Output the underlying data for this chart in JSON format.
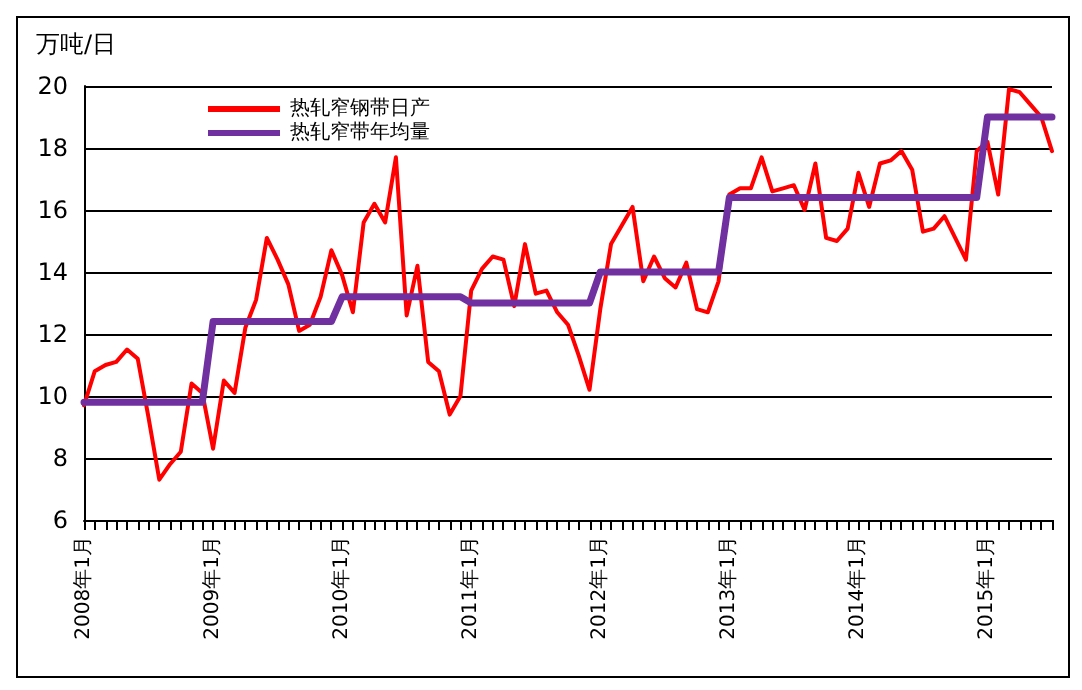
{
  "chart_data": {
    "type": "line",
    "ylabel": "万吨/日",
    "categories": [
      "2008年1月",
      null,
      null,
      null,
      null,
      null,
      null,
      null,
      null,
      null,
      null,
      null,
      "2009年1月",
      null,
      null,
      null,
      null,
      null,
      null,
      null,
      null,
      null,
      null,
      null,
      "2010年1月",
      null,
      null,
      null,
      null,
      null,
      null,
      null,
      null,
      null,
      null,
      null,
      "2011年1月",
      null,
      null,
      null,
      null,
      null,
      null,
      null,
      null,
      null,
      null,
      null,
      "2012年1月",
      null,
      null,
      null,
      null,
      null,
      null,
      null,
      null,
      null,
      null,
      null,
      "2013年1月",
      null,
      null,
      null,
      null,
      null,
      null,
      null,
      null,
      null,
      null,
      null,
      "2014年1月",
      null,
      null,
      null,
      null,
      null,
      null,
      null,
      null,
      null,
      null,
      null,
      "2015年1月",
      null,
      null,
      null,
      null,
      null,
      null
    ],
    "series": [
      {
        "name": "热轧窄钢带日产",
        "color": "#ff0000",
        "values": [
          9.7,
          10.8,
          11.0,
          11.1,
          11.5,
          11.2,
          9.3,
          7.3,
          7.8,
          8.2,
          10.4,
          10.1,
          8.3,
          10.5,
          10.1,
          12.2,
          13.1,
          15.1,
          14.4,
          13.6,
          12.1,
          12.3,
          13.2,
          14.7,
          13.9,
          12.7,
          15.6,
          16.2,
          15.6,
          17.7,
          12.6,
          14.2,
          11.1,
          10.8,
          9.4,
          10.0,
          13.4,
          14.1,
          14.5,
          14.4,
          12.9,
          14.9,
          13.3,
          13.4,
          12.7,
          12.3,
          11.3,
          10.2,
          12.8,
          14.9,
          15.5,
          16.1,
          13.7,
          14.5,
          13.8,
          13.5,
          14.3,
          12.8,
          12.7,
          13.7,
          16.5,
          16.7,
          16.7,
          17.7,
          16.6,
          16.7,
          16.8,
          16.0,
          17.5,
          15.1,
          15.0,
          15.4,
          17.2,
          16.1,
          17.5,
          17.6,
          17.9,
          17.3,
          15.3,
          15.4,
          15.8,
          15.1,
          14.4,
          17.9,
          18.2,
          16.5,
          19.9,
          19.8,
          19.4,
          19.0,
          17.9
        ]
      },
      {
        "name": "热轧窄带年均量",
        "color": "#7030a0",
        "values": [
          9.8,
          9.8,
          9.8,
          9.8,
          9.8,
          9.8,
          9.8,
          9.8,
          9.8,
          9.8,
          9.8,
          9.8,
          12.4,
          12.4,
          12.4,
          12.4,
          12.4,
          12.4,
          12.4,
          12.4,
          12.4,
          12.4,
          12.4,
          12.4,
          13.2,
          13.2,
          13.2,
          13.2,
          13.2,
          13.2,
          13.2,
          13.2,
          13.2,
          13.2,
          13.2,
          13.2,
          13.0,
          13.0,
          13.0,
          13.0,
          13.0,
          13.0,
          13.0,
          13.0,
          13.0,
          13.0,
          13.0,
          13.0,
          14.0,
          14.0,
          14.0,
          14.0,
          14.0,
          14.0,
          14.0,
          14.0,
          14.0,
          14.0,
          14.0,
          14.0,
          16.4,
          16.4,
          16.4,
          16.4,
          16.4,
          16.4,
          16.4,
          16.4,
          16.4,
          16.4,
          16.4,
          16.4,
          16.4,
          16.4,
          16.4,
          16.4,
          16.4,
          16.4,
          16.4,
          16.4,
          16.4,
          16.4,
          16.4,
          16.4,
          19.0,
          19.0,
          19.0,
          19.0,
          19.0,
          19.0,
          19.0
        ]
      }
    ],
    "ylim": [
      6,
      20
    ],
    "yticks": [
      6,
      8,
      10,
      12,
      14,
      16,
      18,
      20
    ],
    "grid": "y",
    "legend": "top left",
    "marker": "none",
    "line_style": "solid"
  }
}
